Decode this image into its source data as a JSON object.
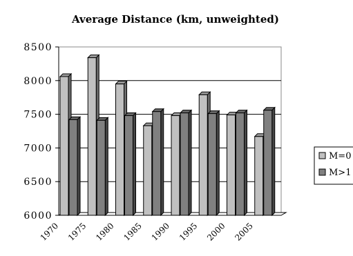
{
  "chart_data": {
    "type": "bar",
    "title": "Average Distance (km, unweighted)",
    "xlabel": "",
    "ylabel": "",
    "categories": [
      "1970",
      "1975",
      "1980",
      "1985",
      "1990",
      "1995",
      "2000",
      "2005"
    ],
    "series": [
      {
        "name": "M=0",
        "color": "#c0c0c0",
        "values": [
          8060,
          8340,
          7950,
          7330,
          7480,
          7790,
          7490,
          7170
        ]
      },
      {
        "name": "M>1",
        "color": "#808080",
        "values": [
          7420,
          7410,
          7480,
          7540,
          7520,
          7510,
          7520,
          7560
        ]
      }
    ],
    "ylim": [
      6000,
      8500
    ],
    "yticks": [
      "6000",
      "6500",
      "7000",
      "7500",
      "8000",
      "8500"
    ],
    "grid": true,
    "legend": "right",
    "style": "3d-bar"
  }
}
